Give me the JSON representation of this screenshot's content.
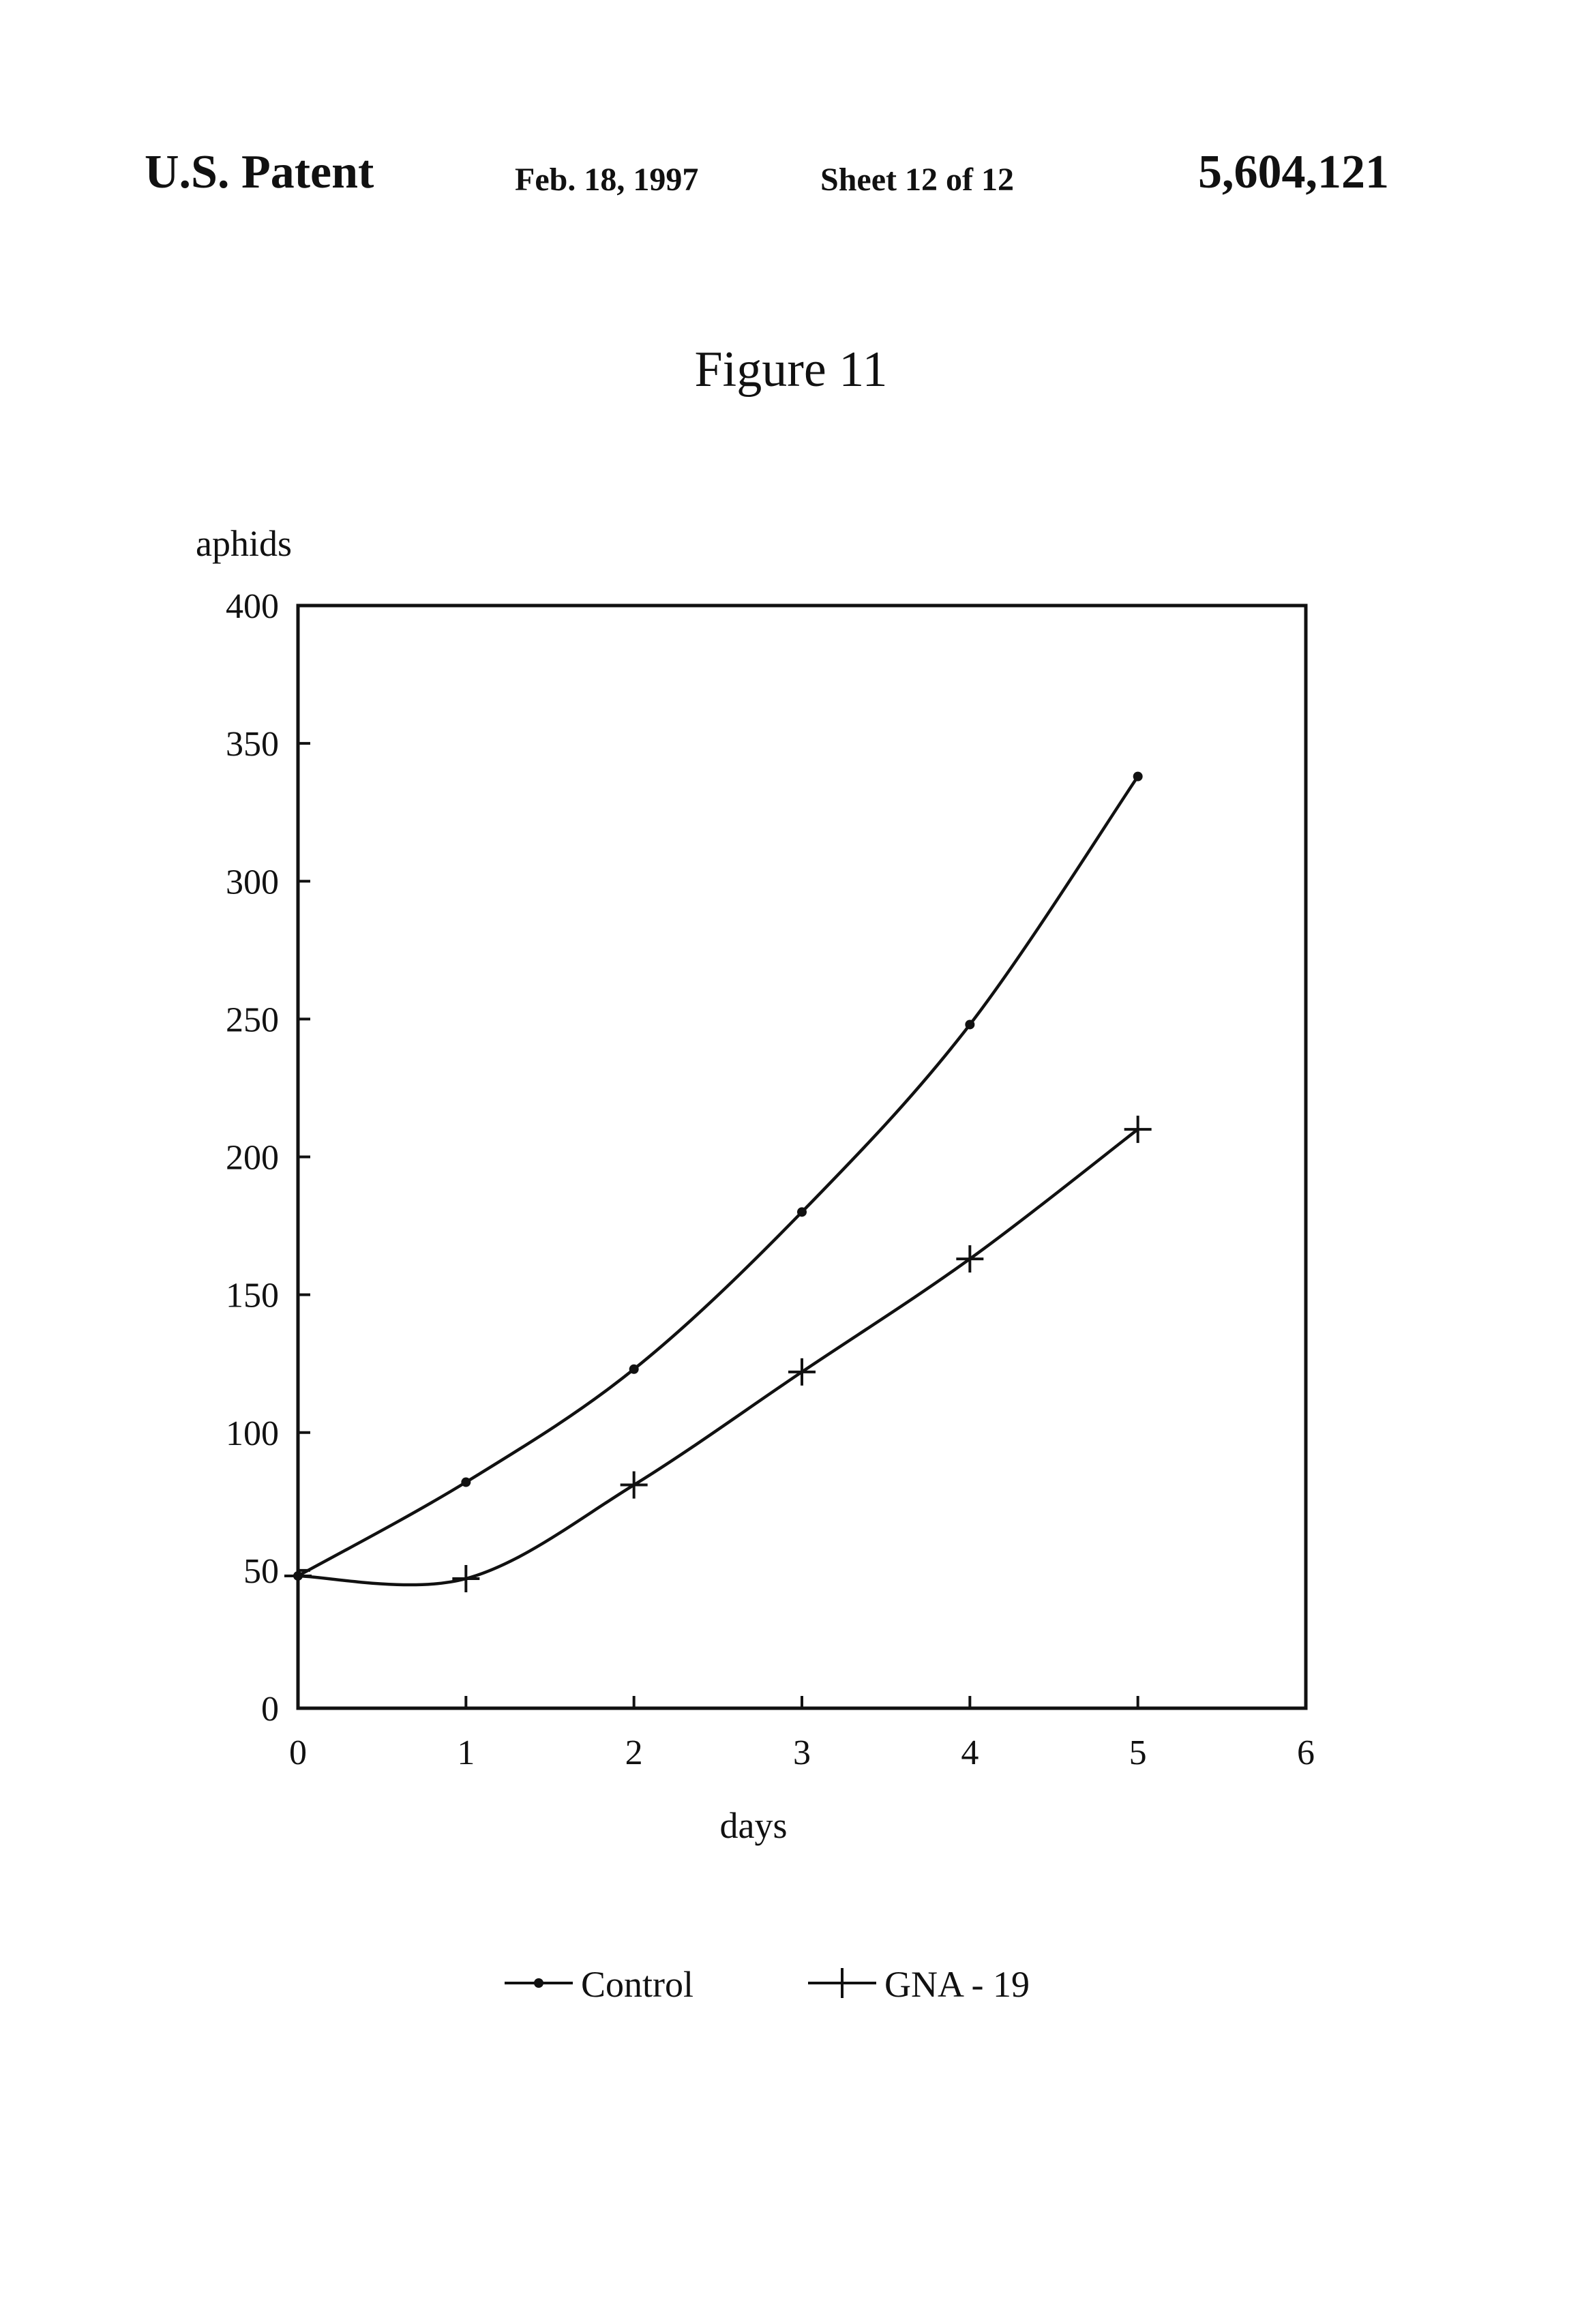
{
  "header": {
    "publication": "U.S. Patent",
    "date": "Feb. 18, 1997",
    "sheet": "Sheet 12 of 12",
    "patent_number": "5,604,121"
  },
  "figure_title": "Figure 11",
  "chart_data": {
    "type": "line",
    "title": "",
    "xlabel": "days",
    "ylabel": "aphids",
    "xlim": [
      0,
      6
    ],
    "ylim": [
      0,
      400
    ],
    "x_ticks": [
      0,
      1,
      2,
      3,
      4,
      5,
      6
    ],
    "y_ticks": [
      0,
      50,
      100,
      150,
      200,
      250,
      300,
      350,
      400
    ],
    "grid": false,
    "legend_position": "bottom",
    "series": [
      {
        "name": "Control",
        "marker": "dot",
        "x": [
          0,
          1,
          2,
          3,
          4,
          5
        ],
        "y": [
          48,
          82,
          123,
          180,
          248,
          338
        ]
      },
      {
        "name": "GNA - 19",
        "marker": "plus",
        "x": [
          0,
          1,
          2,
          3,
          4,
          5
        ],
        "y": [
          48,
          47,
          81,
          122,
          163,
          210
        ]
      }
    ],
    "colors": {
      "ink": "#111111"
    }
  }
}
